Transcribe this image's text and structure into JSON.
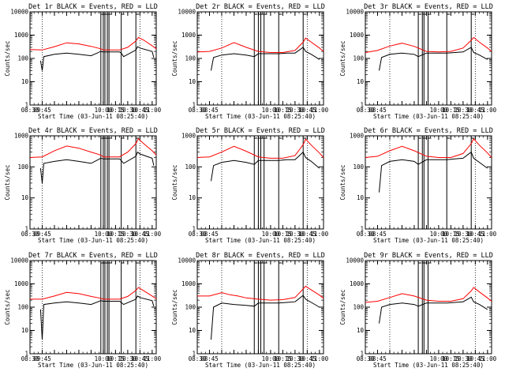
{
  "colors": {
    "events": "#000000",
    "lld": "#ff0000",
    "background": "#ffffff",
    "axes": "#000000"
  },
  "chart_data": [
    {
      "type": "line",
      "title": "Det 1r BLACK = Events, RED = LLD",
      "xlabel": "Start Time (03-Jun-11 08:25:40)",
      "ylabel": "Counts/sec",
      "y_scale": "log",
      "ylim": [
        1,
        10000
      ],
      "xlim": [
        "08:30",
        "11:05"
      ],
      "xticks": [
        "08:30",
        "09:45",
        "10:00",
        "10:15",
        "10:30",
        "10:45",
        "11:00"
      ],
      "yticks": [
        "1",
        "10",
        "100",
        "1000",
        "10000"
      ],
      "dotted_vlines": [
        "08:45",
        "10:45"
      ],
      "solid_vlines": [
        "09:57",
        "10:00",
        "10:02",
        "10:05",
        "10:07",
        "10:22",
        "10:40"
      ],
      "series": [
        {
          "name": "LLD",
          "x": [
            "08:30",
            "08:45",
            "09:00",
            "09:15",
            "09:30",
            "09:45",
            "09:57",
            "10:00",
            "10:20",
            "10:30",
            "10:40",
            "10:43",
            "10:50",
            "11:00",
            "11:05"
          ],
          "y": [
            240,
            230,
            320,
            470,
            420,
            330,
            260,
            230,
            230,
            300,
            560,
            800,
            600,
            350,
            260
          ]
        },
        {
          "name": "Events",
          "x": [
            "08:30",
            "08:43",
            "08:45",
            "08:47",
            "09:00",
            "09:15",
            "09:30",
            "09:45",
            "09:57",
            "10:00",
            "10:20",
            "10:22",
            "10:25",
            "10:40",
            "10:42",
            "10:45",
            "11:00",
            "11:02"
          ],
          "y": [
            null,
            80,
            30,
            120,
            150,
            170,
            150,
            130,
            200,
            190,
            190,
            170,
            120,
            230,
            320,
            280,
            200,
            110
          ]
        }
      ]
    },
    {
      "type": "line",
      "title": "Det 2r BLACK = Events, RED = LLD",
      "xlabel": "Start Time (03-Jun-11 08:25:40)",
      "ylabel": "Counts/sec",
      "y_scale": "log",
      "ylim": [
        1,
        10000
      ],
      "xlim": [
        "08:30",
        "11:05"
      ],
      "xticks": [
        "08:30",
        "08:45",
        "10:00",
        "10:15",
        "10:30",
        "10:45",
        "11:00"
      ],
      "yticks": [
        "1",
        "10",
        "100",
        "1000",
        "10000"
      ],
      "dotted_vlines": [
        "09:00",
        "10:45"
      ],
      "solid_vlines": [
        "09:40",
        "09:45",
        "09:48",
        "09:52",
        "10:10",
        "10:40"
      ],
      "series": [
        {
          "name": "LLD",
          "x": [
            "08:30",
            "08:45",
            "09:00",
            "09:15",
            "09:30",
            "09:45",
            "10:00",
            "10:15",
            "10:30",
            "10:40",
            "10:43",
            "10:50",
            "11:00",
            "11:05"
          ],
          "y": [
            190,
            200,
            280,
            480,
            300,
            200,
            180,
            180,
            220,
            500,
            750,
            500,
            280,
            200
          ]
        },
        {
          "name": "Events",
          "x": [
            "08:45",
            "08:47",
            "08:50",
            "09:00",
            "09:15",
            "09:30",
            "09:40",
            "09:45",
            "10:00",
            "10:10",
            "10:20",
            "10:30",
            "10:40",
            "10:43",
            "10:50",
            "11:00"
          ],
          "y": [
            null,
            30,
            110,
            140,
            160,
            140,
            120,
            160,
            160,
            160,
            170,
            170,
            300,
            200,
            150,
            90
          ]
        }
      ]
    },
    {
      "type": "line",
      "title": "Det 3r BLACK = Events, RED = LLD",
      "xlabel": "Start Time (03-Jun-11 08:25:40)",
      "ylabel": "Counts/sec",
      "y_scale": "log",
      "ylim": [
        1,
        10000
      ],
      "xlim": [
        "08:30",
        "11:05"
      ],
      "xticks": [
        "08:30",
        "08:45",
        "10:00",
        "10:15",
        "10:30",
        "10:45",
        "11:00"
      ],
      "yticks": [
        "1",
        "10",
        "100",
        "1000",
        "10000"
      ],
      "dotted_vlines": [
        "09:00",
        "10:45"
      ],
      "solid_vlines": [
        "09:35",
        "09:40",
        "09:42",
        "09:47",
        "10:10",
        "10:40"
      ],
      "series": [
        {
          "name": "LLD",
          "x": [
            "08:30",
            "08:45",
            "09:00",
            "09:15",
            "09:30",
            "09:45",
            "10:00",
            "10:15",
            "10:30",
            "10:40",
            "10:43",
            "10:50",
            "11:00",
            "11:05"
          ],
          "y": [
            180,
            220,
            340,
            450,
            330,
            200,
            190,
            200,
            280,
            600,
            800,
            500,
            280,
            200
          ]
        },
        {
          "name": "Events",
          "x": [
            "08:45",
            "08:47",
            "08:50",
            "09:00",
            "09:15",
            "09:30",
            "09:35",
            "09:45",
            "10:00",
            "10:10",
            "10:20",
            "10:30",
            "10:40",
            "10:43",
            "10:50",
            "11:00"
          ],
          "y": [
            null,
            30,
            110,
            150,
            170,
            150,
            120,
            170,
            170,
            170,
            180,
            190,
            300,
            180,
            140,
            90
          ]
        }
      ]
    },
    {
      "type": "line",
      "title": "Det 4r BLACK = Events, RED = LLD",
      "xlabel": "Start Time (03-Jun-11 08:25:40)",
      "ylabel": "Counts/sec",
      "y_scale": "log",
      "ylim": [
        1,
        1000
      ],
      "xlim": [
        "08:30",
        "11:05"
      ],
      "xticks": [
        "08:30",
        "09:45",
        "10:00",
        "10:15",
        "10:30",
        "10:45",
        "11:00"
      ],
      "yticks": [
        "1",
        "10",
        "100",
        "1000"
      ],
      "dotted_vlines": [
        "08:45",
        "10:45"
      ],
      "solid_vlines": [
        "09:57",
        "10:00",
        "10:02",
        "10:05",
        "10:07",
        "10:22",
        "10:40"
      ],
      "series": [
        {
          "name": "LLD",
          "x": [
            "08:30",
            "08:45",
            "09:00",
            "09:15",
            "09:30",
            "09:45",
            "09:57",
            "10:00",
            "10:20",
            "10:30",
            "10:40",
            "10:43",
            "10:50",
            "11:00",
            "11:05"
          ],
          "y": [
            200,
            210,
            330,
            470,
            400,
            300,
            240,
            210,
            210,
            300,
            560,
            800,
            550,
            330,
            240
          ]
        },
        {
          "name": "Events",
          "x": [
            "08:43",
            "08:45",
            "08:47",
            "09:00",
            "09:15",
            "09:30",
            "09:45",
            "09:57",
            "10:00",
            "10:20",
            "10:22",
            "10:25",
            "10:40",
            "10:42",
            "10:45",
            "11:00",
            "11:02"
          ],
          "y": [
            90,
            30,
            130,
            150,
            170,
            150,
            130,
            190,
            180,
            180,
            160,
            130,
            220,
            300,
            260,
            190,
            110
          ]
        }
      ]
    },
    {
      "type": "line",
      "title": "Det 5r BLACK = Events, RED = LLD",
      "xlabel": "Start Time (03-Jun-11 08:25:40)",
      "ylabel": "Counts/sec",
      "y_scale": "log",
      "ylim": [
        1,
        1000
      ],
      "xlim": [
        "08:30",
        "11:05"
      ],
      "xticks": [
        "08:30",
        "08:45",
        "10:00",
        "10:15",
        "10:30",
        "10:45",
        "11:00"
      ],
      "yticks": [
        "1",
        "10",
        "100",
        "1000"
      ],
      "dotted_vlines": [
        "09:00",
        "10:45"
      ],
      "solid_vlines": [
        "09:40",
        "09:45",
        "09:48",
        "09:52",
        "10:10",
        "10:40"
      ],
      "series": [
        {
          "name": "LLD",
          "x": [
            "08:30",
            "08:45",
            "09:00",
            "09:15",
            "09:30",
            "09:45",
            "10:00",
            "10:15",
            "10:30",
            "10:40",
            "10:43",
            "10:50",
            "11:00",
            "11:05"
          ],
          "y": [
            200,
            210,
            300,
            460,
            320,
            210,
            190,
            190,
            230,
            520,
            780,
            500,
            280,
            200
          ]
        },
        {
          "name": "Events",
          "x": [
            "08:45",
            "08:47",
            "08:50",
            "09:00",
            "09:15",
            "09:30",
            "09:40",
            "09:45",
            "10:00",
            "10:10",
            "10:20",
            "10:30",
            "10:40",
            "10:43",
            "10:50",
            "11:00"
          ],
          "y": [
            null,
            35,
            110,
            140,
            160,
            140,
            120,
            160,
            160,
            160,
            170,
            170,
            300,
            200,
            150,
            90
          ]
        }
      ]
    },
    {
      "type": "line",
      "title": "Det 6r BLACK = Events, RED = LLD",
      "xlabel": "Start Time (03-Jun-11 08:25:40)",
      "ylabel": "Counts/sec",
      "y_scale": "log",
      "ylim": [
        1,
        1000
      ],
      "xlim": [
        "08:30",
        "11:05"
      ],
      "xticks": [
        "08:30",
        "08:45",
        "10:00",
        "10:15",
        "10:30",
        "10:45",
        "11:00"
      ],
      "yticks": [
        "1",
        "10",
        "100",
        "1000"
      ],
      "dotted_vlines": [
        "09:00",
        "10:45"
      ],
      "solid_vlines": [
        "09:35",
        "09:40",
        "09:42",
        "09:47",
        "10:10",
        "10:40"
      ],
      "series": [
        {
          "name": "LLD",
          "x": [
            "08:30",
            "08:45",
            "09:00",
            "09:15",
            "09:30",
            "09:45",
            "10:00",
            "10:15",
            "10:30",
            "10:40",
            "10:43",
            "10:50",
            "11:00",
            "11:05"
          ],
          "y": [
            200,
            220,
            330,
            460,
            330,
            220,
            200,
            200,
            270,
            560,
            800,
            500,
            280,
            200
          ]
        },
        {
          "name": "Events",
          "x": [
            "08:45",
            "08:47",
            "08:50",
            "09:00",
            "09:15",
            "09:30",
            "09:35",
            "09:45",
            "10:00",
            "10:10",
            "10:20",
            "10:30",
            "10:40",
            "10:43",
            "10:50",
            "11:00"
          ],
          "y": [
            null,
            15,
            110,
            150,
            170,
            150,
            120,
            170,
            170,
            170,
            180,
            190,
            300,
            190,
            140,
            90
          ]
        }
      ]
    },
    {
      "type": "line",
      "title": "Det 7r BLACK = Events, RED = LLD",
      "xlabel": "Start Time (03-Jun-11 08:25:40)",
      "ylabel": "Counts/sec",
      "y_scale": "log",
      "ylim": [
        1,
        10000
      ],
      "xlim": [
        "08:30",
        "11:05"
      ],
      "xticks": [
        "08:30",
        "09:45",
        "10:00",
        "10:15",
        "10:30",
        "10:45",
        "11:00"
      ],
      "yticks": [
        "1",
        "10",
        "100",
        "1000",
        "10000"
      ],
      "dotted_vlines": [
        "08:45",
        "10:45"
      ],
      "solid_vlines": [
        "09:57",
        "10:00",
        "10:02",
        "10:05",
        "10:07",
        "10:22",
        "10:40"
      ],
      "series": [
        {
          "name": "LLD",
          "x": [
            "08:30",
            "08:45",
            "09:00",
            "09:15",
            "09:30",
            "09:45",
            "09:57",
            "10:00",
            "10:20",
            "10:30",
            "10:40",
            "10:43",
            "10:50",
            "11:00",
            "11:05"
          ],
          "y": [
            220,
            220,
            300,
            430,
            380,
            290,
            240,
            220,
            220,
            290,
            520,
            700,
            500,
            300,
            230
          ]
        },
        {
          "name": "Events",
          "x": [
            "08:43",
            "08:45",
            "08:47",
            "09:00",
            "09:15",
            "09:30",
            "09:45",
            "09:57",
            "10:00",
            "10:20",
            "10:22",
            "10:25",
            "10:40",
            "10:42",
            "10:45",
            "11:00",
            "11:02"
          ],
          "y": [
            80,
            4,
            130,
            150,
            170,
            150,
            130,
            190,
            180,
            180,
            160,
            130,
            220,
            300,
            260,
            190,
            110
          ]
        }
      ]
    },
    {
      "type": "line",
      "title": "Det 8r BLACK = Events, RED = LLD",
      "xlabel": "Start Time (03-Jun-11 08:25:40)",
      "ylabel": "Counts/sec",
      "y_scale": "log",
      "ylim": [
        1,
        10000
      ],
      "xlim": [
        "08:30",
        "11:05"
      ],
      "xticks": [
        "08:30",
        "08:45",
        "10:00",
        "10:15",
        "10:30",
        "10:45",
        "11:00"
      ],
      "yticks": [
        "1",
        "10",
        "100",
        "1000",
        "10000"
      ],
      "dotted_vlines": [
        "09:00",
        "10:45"
      ],
      "solid_vlines": [
        "09:40",
        "09:45",
        "09:48",
        "09:52",
        "10:10",
        "10:40"
      ],
      "series": [
        {
          "name": "LLD",
          "x": [
            "08:30",
            "08:45",
            "09:00",
            "09:10",
            "09:20",
            "09:30",
            "09:45",
            "10:00",
            "10:15",
            "10:30",
            "10:40",
            "10:43",
            "10:50",
            "11:00",
            "11:05"
          ],
          "y": [
            300,
            300,
            420,
            340,
            300,
            250,
            220,
            200,
            210,
            260,
            600,
            800,
            550,
            330,
            240
          ]
        },
        {
          "name": "Events",
          "x": [
            "08:45",
            "08:47",
            "08:50",
            "09:00",
            "09:15",
            "09:30",
            "09:40",
            "09:45",
            "10:00",
            "10:10",
            "10:20",
            "10:30",
            "10:40",
            "10:43",
            "10:50",
            "11:00"
          ],
          "y": [
            null,
            4,
            100,
            150,
            130,
            120,
            110,
            150,
            150,
            150,
            160,
            170,
            320,
            220,
            160,
            100
          ]
        }
      ]
    },
    {
      "type": "line",
      "title": "Det 9r BLACK = Events, RED = LLD",
      "xlabel": "Start Time (03-Jun-11 08:25:40)",
      "ylabel": "Counts/sec",
      "y_scale": "log",
      "ylim": [
        1,
        10000
      ],
      "xlim": [
        "08:30",
        "11:05"
      ],
      "xticks": [
        "08:30",
        "08:45",
        "10:00",
        "10:15",
        "10:30",
        "10:45",
        "11:00"
      ],
      "yticks": [
        "1",
        "10",
        "100",
        "1000",
        "10000"
      ],
      "dotted_vlines": [
        "09:00",
        "10:45"
      ],
      "solid_vlines": [
        "09:35",
        "09:40",
        "09:42",
        "09:47"
      ],
      "series": [
        {
          "name": "LLD",
          "x": [
            "08:30",
            "08:45",
            "09:00",
            "09:15",
            "09:30",
            "09:45",
            "10:00",
            "10:15",
            "10:30",
            "10:40",
            "10:43",
            "10:50",
            "11:00",
            "11:05"
          ],
          "y": [
            160,
            180,
            260,
            380,
            300,
            200,
            180,
            180,
            230,
            500,
            700,
            450,
            250,
            180
          ]
        },
        {
          "name": "Events",
          "x": [
            "08:45",
            "08:47",
            "08:50",
            "09:00",
            "09:15",
            "09:30",
            "09:35",
            "09:45",
            "10:00",
            "10:10",
            "10:20",
            "10:30",
            "10:40",
            "10:43",
            "10:50",
            "11:00"
          ],
          "y": [
            null,
            20,
            100,
            130,
            150,
            130,
            110,
            150,
            150,
            150,
            160,
            170,
            270,
            170,
            130,
            80
          ]
        }
      ]
    }
  ]
}
